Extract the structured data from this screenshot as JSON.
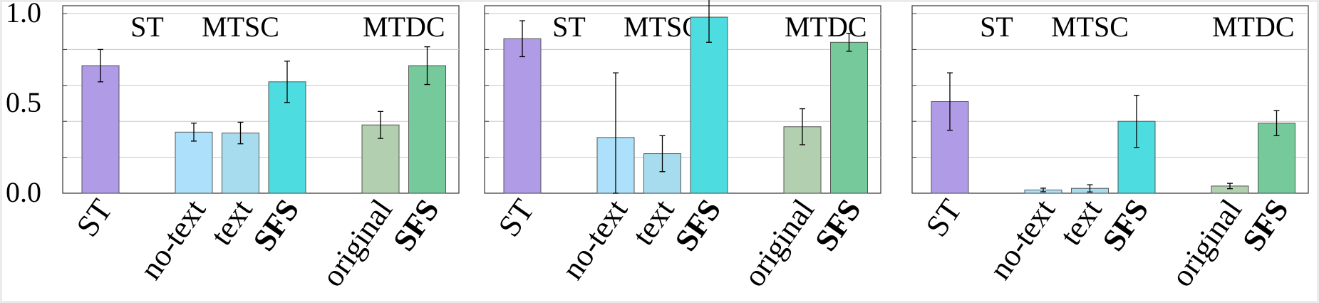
{
  "chart_data": {
    "type": "bar",
    "ylim": [
      0,
      1
    ],
    "yticks": [
      "0.0",
      "0.5",
      "1.0"
    ],
    "grid": true,
    "categories": [
      "ST",
      "",
      "no-text",
      "text",
      "SFS",
      "",
      "original",
      "SFS"
    ],
    "bold_categories": [
      false,
      false,
      false,
      false,
      true,
      false,
      false,
      true
    ],
    "group_labels": [
      "ST",
      "MTSC",
      "MTDC"
    ],
    "bar_colors": [
      "#b09ce6",
      null,
      "#ade1fb",
      "#a7dcee",
      "#4ddcdf",
      null,
      "#b2cfaf",
      "#75c99a"
    ],
    "panels": [
      {
        "values": [
          0.71,
          null,
          0.34,
          0.335,
          0.62,
          null,
          0.38,
          0.71
        ],
        "errors": [
          0.09,
          null,
          0.05,
          0.06,
          0.115,
          null,
          0.075,
          0.105
        ]
      },
      {
        "values": [
          0.86,
          null,
          0.31,
          0.22,
          0.98,
          null,
          0.37,
          0.84
        ],
        "errors": [
          0.1,
          null,
          0.36,
          0.1,
          0.14,
          null,
          0.1,
          0.05
        ]
      },
      {
        "values": [
          0.51,
          null,
          0.018,
          0.027,
          0.4,
          null,
          0.04,
          0.39
        ],
        "errors": [
          0.16,
          null,
          0.01,
          0.02,
          0.145,
          null,
          0.015,
          0.07
        ]
      }
    ]
  }
}
